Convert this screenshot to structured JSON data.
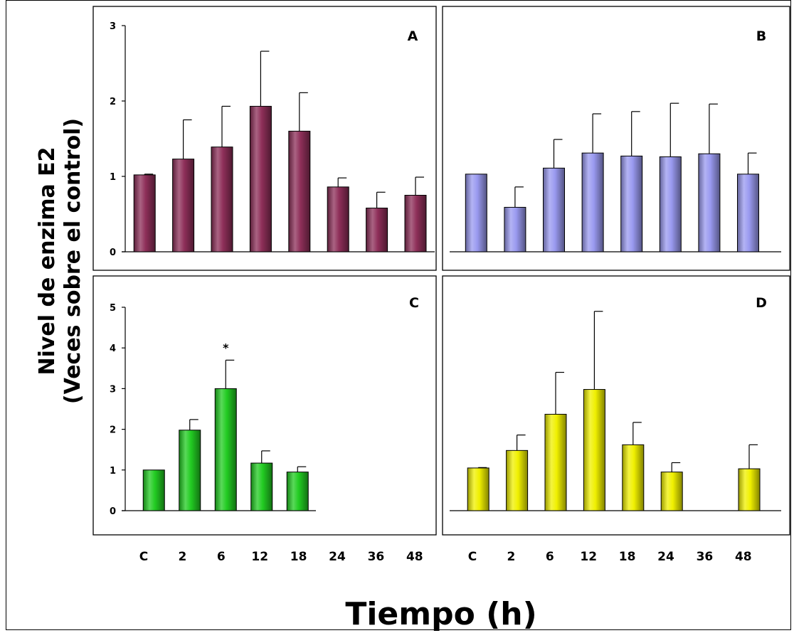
{
  "figure": {
    "ylabel_line1": "Nivel de enzima E2",
    "ylabel_line2": "(Veces sobre el control)",
    "xlabel": "Tiempo (h)"
  },
  "chart_data": [
    {
      "panel": "A",
      "type": "bar",
      "categories": [
        "C",
        "2",
        "6",
        "12",
        "18",
        "24",
        "36",
        "48"
      ],
      "values": [
        1.02,
        1.23,
        1.39,
        1.93,
        1.6,
        0.86,
        0.58,
        0.75
      ],
      "errors": [
        0.01,
        0.52,
        0.54,
        0.73,
        0.51,
        0.12,
        0.21,
        0.24
      ],
      "ylim": [
        0,
        3
      ],
      "yticks": [
        0,
        1,
        2,
        3
      ],
      "show_yaxis": true,
      "color": "#8e2f59",
      "annotations": []
    },
    {
      "panel": "B",
      "type": "bar",
      "categories": [
        "C",
        "2",
        "6",
        "12",
        "18",
        "24",
        "36",
        "48"
      ],
      "values": [
        1.03,
        0.59,
        1.11,
        1.31,
        1.27,
        1.26,
        1.3,
        1.03
      ],
      "errors": [
        0.0,
        0.27,
        0.38,
        0.52,
        0.59,
        0.71,
        0.66,
        0.28
      ],
      "ylim": [
        0,
        3
      ],
      "yticks": [],
      "show_yaxis": false,
      "color": "#9a9af0",
      "annotations": []
    },
    {
      "panel": "C",
      "type": "bar",
      "categories": [
        "C",
        "2",
        "6",
        "12",
        "18",
        "24",
        "36",
        "48"
      ],
      "values": [
        1.0,
        1.98,
        3.0,
        1.17,
        0.95,
        null,
        null,
        null
      ],
      "errors": [
        0.0,
        0.26,
        0.7,
        0.3,
        0.13,
        null,
        null,
        null
      ],
      "ylim": [
        0,
        5
      ],
      "yticks": [
        0,
        1,
        2,
        3,
        4,
        5
      ],
      "show_yaxis": true,
      "color": "#22cc22",
      "annotations": [
        {
          "category": "6",
          "text": "*"
        }
      ]
    },
    {
      "panel": "D",
      "type": "bar",
      "categories": [
        "C",
        "2",
        "6",
        "12",
        "18",
        "24",
        "36",
        "48"
      ],
      "values": [
        1.05,
        1.48,
        2.37,
        2.98,
        1.62,
        0.95,
        null,
        1.03
      ],
      "errors": [
        0.01,
        0.38,
        1.03,
        1.92,
        0.55,
        0.23,
        null,
        0.59
      ],
      "ylim": [
        0,
        5
      ],
      "yticks": [],
      "show_yaxis": false,
      "color": "#f0f000",
      "annotations": []
    }
  ]
}
